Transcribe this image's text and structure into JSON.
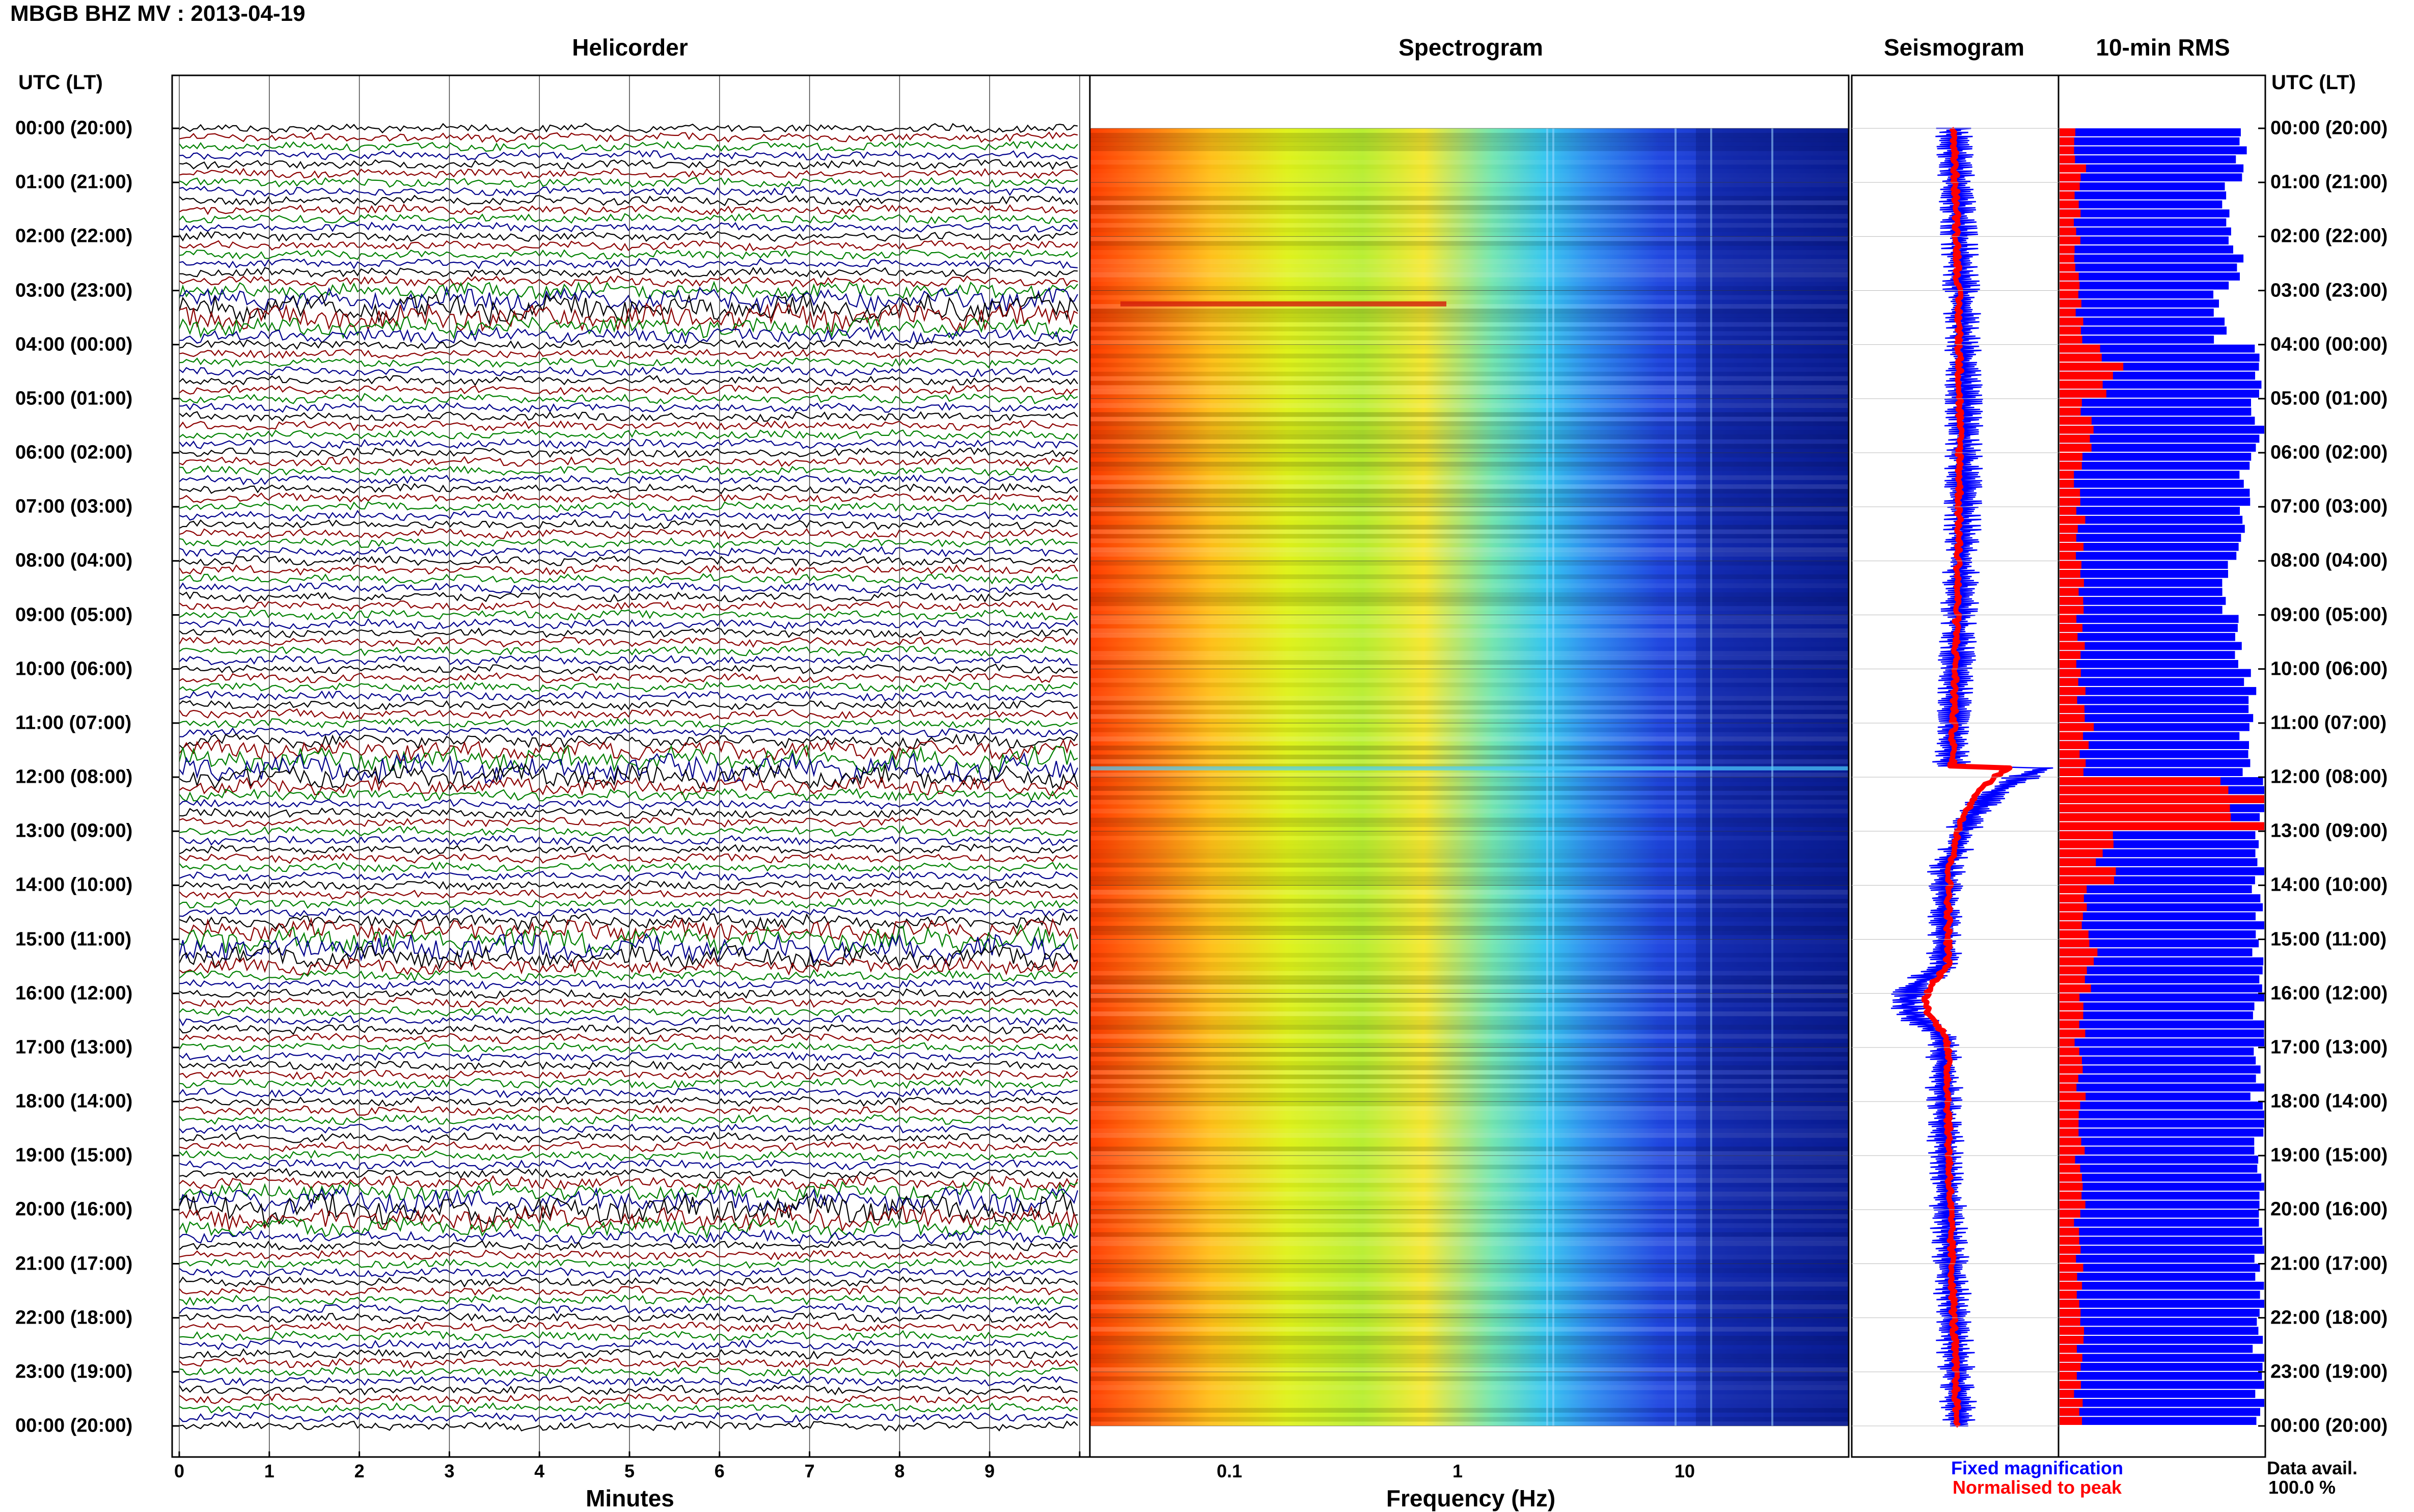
{
  "title": "MBGB BHZ MV : 2013-04-19",
  "panels": {
    "helicorder": "Helicorder",
    "spectrogram": "Spectrogram",
    "seismogram": "Seismogram",
    "rms": "10-min RMS"
  },
  "axis_corner_left": "UTC (LT)",
  "axis_corner_right": "UTC (LT)",
  "time_labels": [
    "00:00 (20:00)",
    "01:00 (21:00)",
    "02:00 (22:00)",
    "03:00 (23:00)",
    "04:00 (00:00)",
    "05:00 (01:00)",
    "06:00 (02:00)",
    "07:00 (03:00)",
    "08:00 (04:00)",
    "09:00 (05:00)",
    "10:00 (06:00)",
    "11:00 (07:00)",
    "12:00 (08:00)",
    "13:00 (09:00)",
    "14:00 (10:00)",
    "15:00 (11:00)",
    "16:00 (12:00)",
    "17:00 (13:00)",
    "18:00 (14:00)",
    "19:00 (15:00)",
    "20:00 (16:00)",
    "21:00 (17:00)",
    "22:00 (18:00)",
    "23:00 (19:00)",
    "00:00 (20:00)"
  ],
  "minutes_axis": {
    "label": "Minutes",
    "ticks": [
      "0",
      "1",
      "2",
      "3",
      "4",
      "5",
      "6",
      "7",
      "8",
      "9"
    ]
  },
  "frequency_axis": {
    "label": "Frequency (Hz)",
    "ticks": [
      "0.1",
      "1",
      "10"
    ],
    "scale": "log"
  },
  "legend": {
    "fixed": "Fixed magnification",
    "normalised": "Normalised to peak"
  },
  "data_avail": {
    "label": "Data avail.",
    "value": "100.0 %"
  },
  "colors": {
    "fixed": "#0000ff",
    "normalised": "#ff0000",
    "trace_cycle": [
      "#000000",
      "#8b0000",
      "#008000",
      "#00008b"
    ]
  },
  "chart_data": {
    "type": "heatmap",
    "title": "MBGB BHZ MV : 2013-04-19",
    "components": [
      "helicorder",
      "spectrogram",
      "seismogram",
      "10-min RMS"
    ],
    "x_helicorder": {
      "label": "Minutes",
      "range": [
        0,
        10
      ]
    },
    "x_spectrogram": {
      "label": "Frequency (Hz)",
      "range": [
        0.02,
        50
      ],
      "scale": "log"
    },
    "y": {
      "label": "UTC (LT)",
      "range": [
        "00:00",
        "24:00"
      ]
    },
    "events_utc_hours": [
      3.4,
      11.8,
      15.1,
      20.0
    ],
    "rms_fixed_fraction_by_hour": [
      0.9,
      0.82,
      0.86,
      0.78,
      0.98,
      0.97,
      0.9,
      0.88,
      0.83,
      0.85,
      0.94,
      0.9,
      1.0,
      0.98,
      0.97,
      0.98,
      0.98,
      0.97,
      0.98,
      0.98,
      0.98,
      0.98,
      0.98,
      0.98
    ],
    "rms_normalised_fraction_by_hour": [
      0.1,
      0.08,
      0.09,
      0.1,
      0.25,
      0.14,
      0.1,
      0.1,
      0.1,
      0.1,
      0.1,
      0.13,
      1.0,
      0.22,
      0.12,
      0.16,
      0.1,
      0.1,
      0.1,
      0.1,
      0.1,
      0.1,
      0.1,
      0.1
    ]
  }
}
